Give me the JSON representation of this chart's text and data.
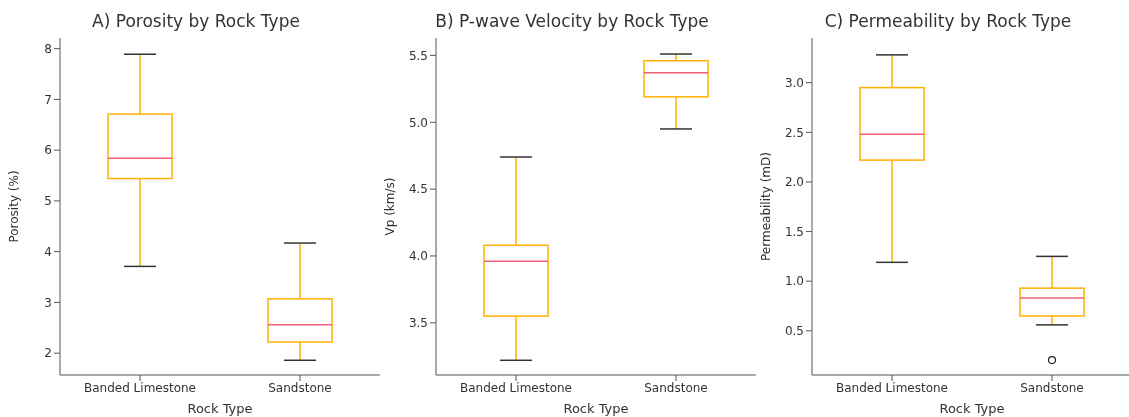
{
  "chart_data": [
    {
      "type": "box",
      "title": "A) Porosity by Rock Type",
      "xlabel": "Rock Type",
      "ylabel": "Porosity (%)",
      "categories": [
        "Banded Limestone",
        "Sandstone"
      ],
      "ylim": [
        1.57,
        8.21
      ],
      "yticks": [
        2,
        3,
        4,
        5,
        6,
        7,
        8
      ],
      "series": [
        {
          "color": "#ffb000",
          "boxes": [
            {
              "low": 3.71,
              "q1": 5.44,
              "median": 5.84,
              "q3": 6.71,
              "high": 7.89
            },
            {
              "low": 1.86,
              "q1": 2.22,
              "median": 2.56,
              "q3": 3.07,
              "high": 4.17
            }
          ]
        }
      ]
    },
    {
      "type": "box",
      "title": "B) P-wave Velocity by Rock Type",
      "xlabel": "Rock Type",
      "ylabel": "Vp (km/s)",
      "categories": [
        "Banded Limestone",
        "Sandstone"
      ],
      "ylim": [
        3.11,
        5.63
      ],
      "yticks": [
        3.5,
        {
          "value": 4,
          "label": "4.0"
        },
        4.5,
        {
          "value": 5,
          "label": "5.0"
        },
        5.5
      ],
      "series": [
        {
          "color": "#ffb000",
          "boxes": [
            {
              "low": 3.22,
              "q1": 3.55,
              "median": 3.96,
              "q3": 4.08,
              "high": 4.74
            },
            {
              "low": 4.95,
              "q1": 5.19,
              "median": 5.37,
              "q3": 5.46,
              "high": 5.51
            }
          ]
        }
      ]
    },
    {
      "type": "box",
      "title": "C) Permeability by Rock Type",
      "xlabel": "Rock Type",
      "ylabel": "Permeability (mD)",
      "categories": [
        "Banded Limestone",
        "Sandstone"
      ],
      "ylim": [
        0.055,
        3.45
      ],
      "yticks": [
        0.5,
        {
          "value": 1,
          "label": "1.0"
        },
        1.5,
        {
          "value": 2,
          "label": "2.0"
        },
        2.5,
        {
          "value": 3,
          "label": "3.0"
        }
      ],
      "series": [
        {
          "color": "#ffb000",
          "boxes": [
            {
              "low": 1.19,
              "q1": 2.22,
              "median": 2.48,
              "q3": 2.95,
              "high": 3.28
            },
            {
              "low": 0.56,
              "q1": 0.65,
              "median": 0.83,
              "q3": 0.93,
              "high": 1.25,
              "outliers": [
                0.205
              ]
            }
          ]
        }
      ]
    }
  ]
}
